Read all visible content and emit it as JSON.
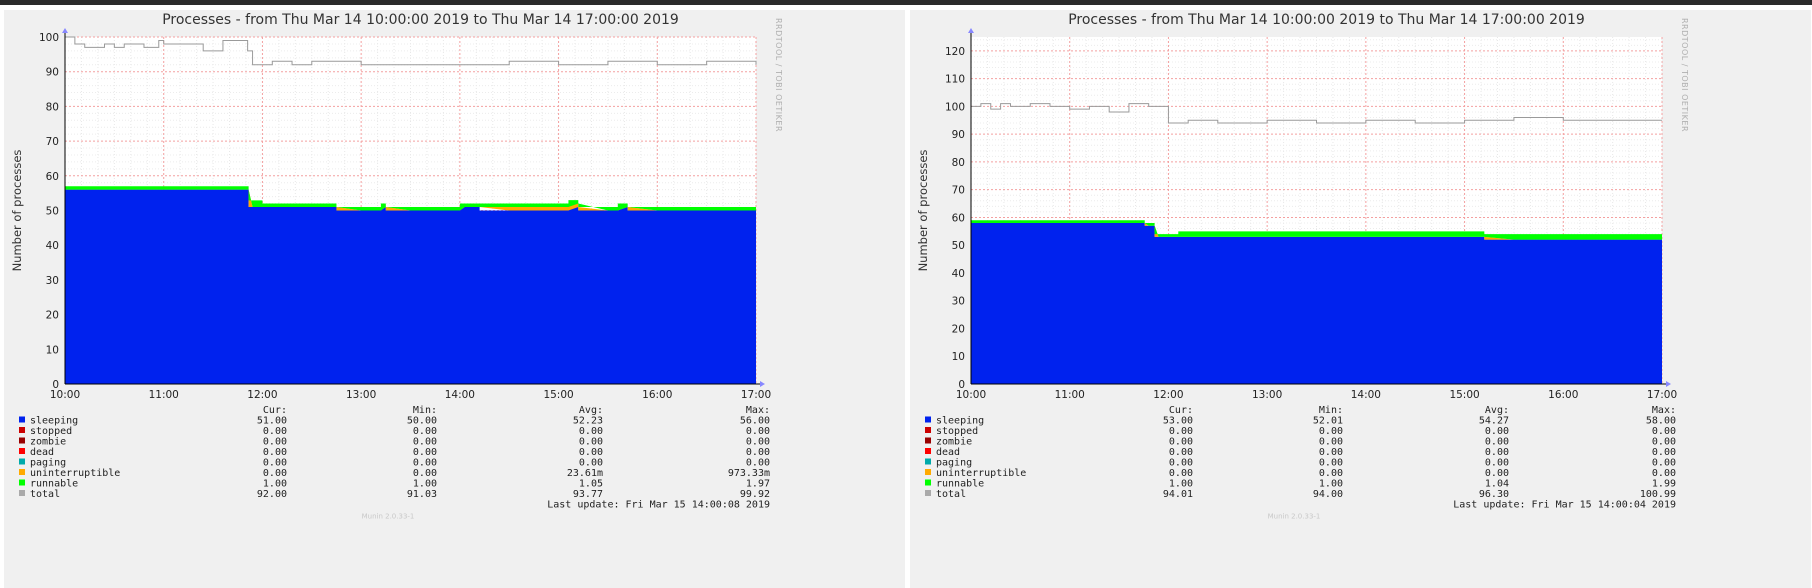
{
  "chart_data": [
    {
      "type": "area",
      "title": "Processes - from Thu Mar 14 10:00:00 2019 to Thu Mar 14 17:00:00 2019",
      "ylabel": "Number of processes",
      "side_label": "RRDTOOL / TOBI OETIKER",
      "x_ticks": [
        "10:00",
        "11:00",
        "12:00",
        "13:00",
        "14:00",
        "15:00",
        "16:00",
        "17:00"
      ],
      "y_ticks": [
        0,
        10,
        20,
        30,
        40,
        50,
        60,
        70,
        80,
        90,
        100
      ],
      "xlim": [
        10,
        17
      ],
      "ylim": [
        0,
        100
      ],
      "grid": true,
      "stat_headers": [
        "Cur:",
        "Min:",
        "Avg:",
        "Max:"
      ],
      "legend": [
        {
          "name": "sleeping",
          "color": "#0022ee",
          "cur": "51.00",
          "min": "50.00",
          "avg": "52.23",
          "max": "56.00"
        },
        {
          "name": "stopped",
          "color": "#cc0000",
          "cur": "0.00",
          "min": "0.00",
          "avg": "0.00",
          "max": "0.00"
        },
        {
          "name": "zombie",
          "color": "#990000",
          "cur": "0.00",
          "min": "0.00",
          "avg": "0.00",
          "max": "0.00"
        },
        {
          "name": "dead",
          "color": "#ff0000",
          "cur": "0.00",
          "min": "0.00",
          "avg": "0.00",
          "max": "0.00"
        },
        {
          "name": "paging",
          "color": "#00aaaa",
          "cur": "0.00",
          "min": "0.00",
          "avg": "0.00",
          "max": "0.00"
        },
        {
          "name": "uninterruptible",
          "color": "#ffaa00",
          "cur": "0.00",
          "min": "0.00",
          "avg": "23.61m",
          "max": "973.33m"
        },
        {
          "name": "runnable",
          "color": "#00ff00",
          "cur": "1.00",
          "min": "1.00",
          "avg": "1.05",
          "max": "1.97"
        },
        {
          "name": "total",
          "color": "#aaaaaa",
          "cur": "92.00",
          "min": "91.03",
          "avg": "93.77",
          "max": "99.92"
        }
      ],
      "series": [
        {
          "name": "sleeping",
          "x": [
            10,
            11.85,
            11.86,
            12.7,
            12.75,
            13.2,
            13.25,
            14.0,
            14.2,
            15.1,
            15.2,
            15.6,
            15.7,
            17
          ],
          "values": [
            56,
            56,
            51,
            51,
            50,
            51,
            50,
            51,
            50,
            51,
            50,
            51,
            50,
            51
          ]
        },
        {
          "name": "runnable",
          "x": [
            10,
            11.85,
            11.86,
            12.0,
            17
          ],
          "values": [
            1,
            1,
            1.9,
            1,
            1
          ]
        },
        {
          "name": "uninterruptible",
          "x": [
            10,
            14.05,
            14.2,
            15.1,
            15.2,
            17
          ],
          "values": [
            0,
            0,
            1,
            1,
            0,
            0
          ]
        },
        {
          "name": "total",
          "x": [
            10,
            10.1,
            10.2,
            10.4,
            10.5,
            10.6,
            10.8,
            10.95,
            11.0,
            11.3,
            11.4,
            11.6,
            11.85,
            11.9,
            12.1,
            12.3,
            12.5,
            13.0,
            13.5,
            14.0,
            14.5,
            15.0,
            15.5,
            16.0,
            16.5,
            17
          ],
          "values": [
            100,
            98,
            97,
            98,
            97,
            98,
            97,
            99,
            98,
            98,
            96,
            99,
            96,
            92,
            93,
            92,
            93,
            92,
            92,
            92,
            93,
            92,
            93,
            92,
            93,
            92
          ]
        }
      ],
      "last_update": "Last update: Fri Mar 15 14:00:08 2019",
      "footer": "Munin 2.0.33-1"
    },
    {
      "type": "area",
      "title": "Processes - from Thu Mar 14 10:00:00 2019 to Thu Mar 14 17:00:00 2019",
      "ylabel": "Number of processes",
      "side_label": "RRDTOOL / TOBI OETIKER",
      "x_ticks": [
        "10:00",
        "11:00",
        "12:00",
        "13:00",
        "14:00",
        "15:00",
        "16:00",
        "17:00"
      ],
      "y_ticks": [
        0,
        10,
        20,
        30,
        40,
        50,
        60,
        70,
        80,
        90,
        100,
        110,
        120
      ],
      "xlim": [
        10,
        17
      ],
      "ylim": [
        0,
        125
      ],
      "grid": true,
      "stat_headers": [
        "Cur:",
        "Min:",
        "Avg:",
        "Max:"
      ],
      "legend": [
        {
          "name": "sleeping",
          "color": "#0022ee",
          "cur": "53.00",
          "min": "52.01",
          "avg": "54.27",
          "max": "58.00"
        },
        {
          "name": "stopped",
          "color": "#cc0000",
          "cur": "0.00",
          "min": "0.00",
          "avg": "0.00",
          "max": "0.00"
        },
        {
          "name": "zombie",
          "color": "#990000",
          "cur": "0.00",
          "min": "0.00",
          "avg": "0.00",
          "max": "0.00"
        },
        {
          "name": "dead",
          "color": "#ff0000",
          "cur": "0.00",
          "min": "0.00",
          "avg": "0.00",
          "max": "0.00"
        },
        {
          "name": "paging",
          "color": "#00aaaa",
          "cur": "0.00",
          "min": "0.00",
          "avg": "0.00",
          "max": "0.00"
        },
        {
          "name": "uninterruptible",
          "color": "#ffaa00",
          "cur": "0.00",
          "min": "0.00",
          "avg": "0.00",
          "max": "0.00"
        },
        {
          "name": "runnable",
          "color": "#00ff00",
          "cur": "1.00",
          "min": "1.00",
          "avg": "1.04",
          "max": "1.99"
        },
        {
          "name": "total",
          "color": "#aaaaaa",
          "cur": "94.01",
          "min": "94.00",
          "avg": "96.30",
          "max": "100.99"
        }
      ],
      "series": [
        {
          "name": "sleeping",
          "x": [
            10,
            11.75,
            11.76,
            11.85,
            11.86,
            15.1,
            15.2,
            17
          ],
          "values": [
            58,
            58,
            57,
            57,
            53,
            53,
            52,
            53
          ]
        },
        {
          "name": "runnable",
          "x": [
            10,
            12.0,
            12.1,
            17
          ],
          "values": [
            1,
            1,
            2,
            1
          ]
        },
        {
          "name": "uninterruptible",
          "x": [
            10,
            17
          ],
          "values": [
            0,
            0
          ]
        },
        {
          "name": "total",
          "x": [
            10,
            10.1,
            10.2,
            10.3,
            10.4,
            10.6,
            10.8,
            11.0,
            11.2,
            11.4,
            11.6,
            11.8,
            11.9,
            12.0,
            12.2,
            12.5,
            13.0,
            13.5,
            14.0,
            14.5,
            15.0,
            15.5,
            16.0,
            16.5,
            17
          ],
          "values": [
            100,
            101,
            99,
            101,
            100,
            101,
            100,
            99,
            100,
            98,
            101,
            100,
            100,
            94,
            95,
            94,
            95,
            94,
            95,
            94,
            95,
            96,
            95,
            95,
            95
          ]
        }
      ],
      "last_update": "Last update: Fri Mar 15 14:00:04 2019",
      "footer": "Munin 2.0.33-1"
    }
  ]
}
